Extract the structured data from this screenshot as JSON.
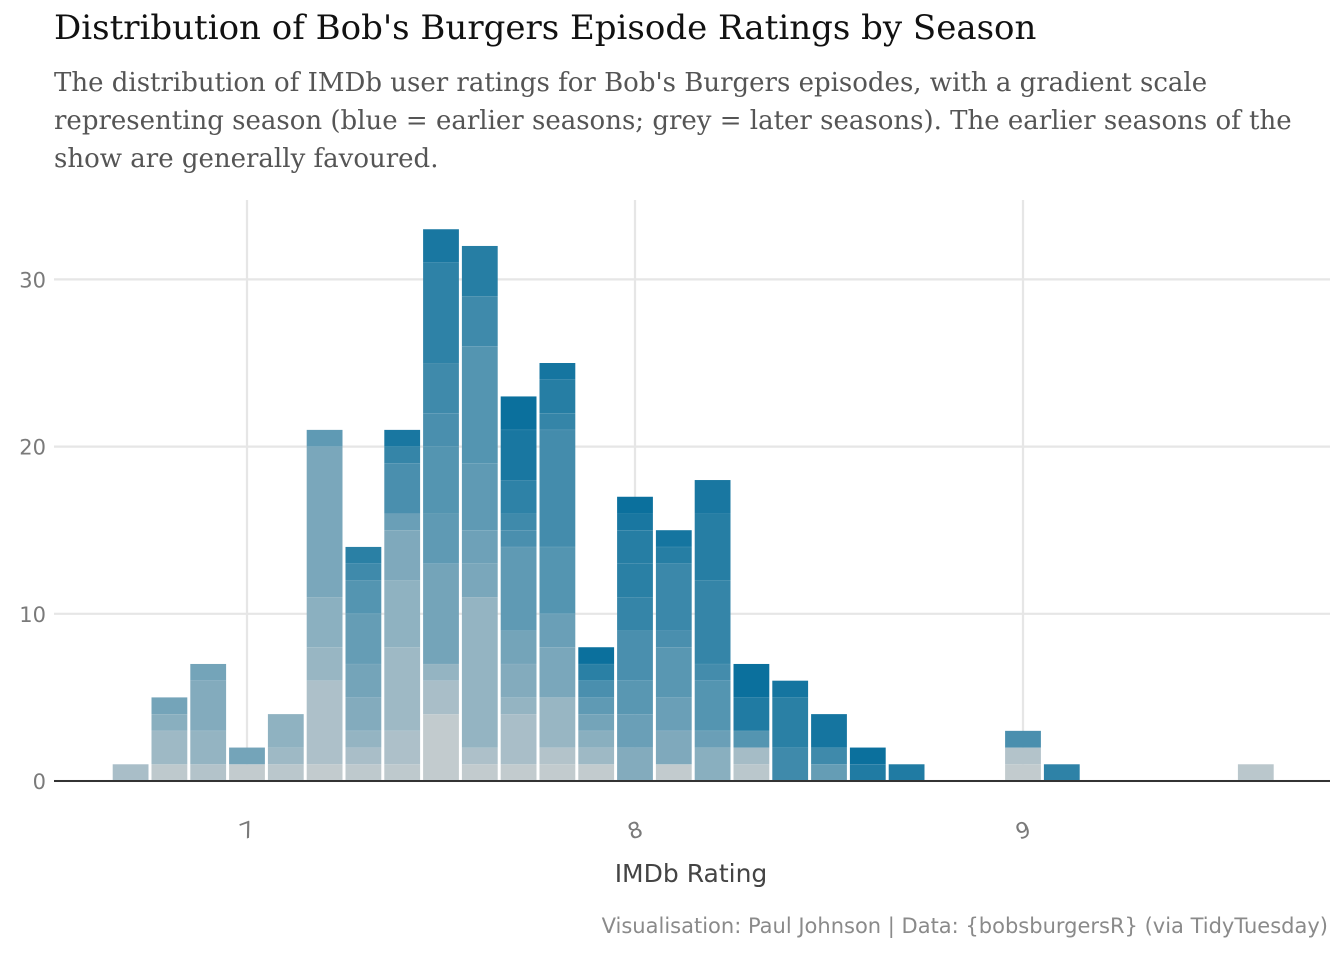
{
  "title": "Distribution of Bob's Burgers Episode Ratings by Season",
  "subtitle": "The distribution of IMDb user ratings for Bob's Burgers episodes, with a gradient scale representing season (blue = earlier seasons; grey = later seasons). The earlier seasons of the show are generally favoured.",
  "caption": "Visualisation: Paul Johnson | Data: {bobsburgersR} (via TidyTuesday)",
  "colors": {
    "earliest_season": "#006b9a",
    "latest_season": "#d3d3d3",
    "grid": "#e6e6e6",
    "baseline": "#333333"
  },
  "chart_data": {
    "type": "bar",
    "stacked": true,
    "xlabel": "IMDb Rating",
    "ylabel": "",
    "xlim": [
      6.5,
      9.8
    ],
    "ylim": [
      0,
      33
    ],
    "x_ticks": [
      7,
      8,
      9
    ],
    "y_ticks": [
      0,
      10,
      20,
      30
    ],
    "grid": true,
    "bin_width": 0.1,
    "bins": [
      {
        "x": 6.7,
        "total": 1,
        "segments": [
          {
            "count": 1,
            "shade": 0.8
          }
        ]
      },
      {
        "x": 6.8,
        "total": 5,
        "segments": [
          {
            "count": 1,
            "shade": 0.9
          },
          {
            "count": 2,
            "shade": 0.75
          },
          {
            "count": 1,
            "shade": 0.65
          },
          {
            "count": 1,
            "shade": 0.55
          }
        ]
      },
      {
        "x": 6.9,
        "total": 7,
        "segments": [
          {
            "count": 1,
            "shade": 0.85
          },
          {
            "count": 2,
            "shade": 0.7
          },
          {
            "count": 3,
            "shade": 0.62
          },
          {
            "count": 1,
            "shade": 0.55
          }
        ]
      },
      {
        "x": 7.0,
        "total": 2,
        "segments": [
          {
            "count": 1,
            "shade": 0.92
          },
          {
            "count": 1,
            "shade": 0.55
          }
        ]
      },
      {
        "x": 7.1,
        "total": 4,
        "segments": [
          {
            "count": 1,
            "shade": 0.88
          },
          {
            "count": 1,
            "shade": 0.75
          },
          {
            "count": 2,
            "shade": 0.68
          }
        ]
      },
      {
        "x": 7.2,
        "total": 21,
        "segments": [
          {
            "count": 1,
            "shade": 0.92
          },
          {
            "count": 5,
            "shade": 0.82
          },
          {
            "count": 2,
            "shade": 0.72
          },
          {
            "count": 3,
            "shade": 0.66
          },
          {
            "count": 9,
            "shade": 0.58
          },
          {
            "count": 1,
            "shade": 0.45
          }
        ]
      },
      {
        "x": 7.3,
        "total": 14,
        "segments": [
          {
            "count": 1,
            "shade": 0.9
          },
          {
            "count": 1,
            "shade": 0.8
          },
          {
            "count": 1,
            "shade": 0.7
          },
          {
            "count": 2,
            "shade": 0.62
          },
          {
            "count": 2,
            "shade": 0.55
          },
          {
            "count": 3,
            "shade": 0.48
          },
          {
            "count": 2,
            "shade": 0.4
          },
          {
            "count": 1,
            "shade": 0.3
          },
          {
            "count": 1,
            "shade": 0.2
          }
        ]
      },
      {
        "x": 7.4,
        "total": 21,
        "segments": [
          {
            "count": 1,
            "shade": 0.9
          },
          {
            "count": 2,
            "shade": 0.82
          },
          {
            "count": 5,
            "shade": 0.75
          },
          {
            "count": 4,
            "shade": 0.68
          },
          {
            "count": 3,
            "shade": 0.6
          },
          {
            "count": 1,
            "shade": 0.5
          },
          {
            "count": 3,
            "shade": 0.35
          },
          {
            "count": 1,
            "shade": 0.25
          },
          {
            "count": 1,
            "shade": 0.12
          }
        ]
      },
      {
        "x": 7.5,
        "total": 33,
        "segments": [
          {
            "count": 4,
            "shade": 0.92
          },
          {
            "count": 2,
            "shade": 0.8
          },
          {
            "count": 1,
            "shade": 0.7
          },
          {
            "count": 6,
            "shade": 0.55
          },
          {
            "count": 3,
            "shade": 0.45
          },
          {
            "count": 4,
            "shade": 0.4
          },
          {
            "count": 2,
            "shade": 0.35
          },
          {
            "count": 3,
            "shade": 0.3
          },
          {
            "count": 6,
            "shade": 0.22
          },
          {
            "count": 2,
            "shade": 0.12
          }
        ]
      },
      {
        "x": 7.6,
        "total": 32,
        "segments": [
          {
            "count": 1,
            "shade": 0.92
          },
          {
            "count": 1,
            "shade": 0.82
          },
          {
            "count": 9,
            "shade": 0.7
          },
          {
            "count": 2,
            "shade": 0.58
          },
          {
            "count": 2,
            "shade": 0.52
          },
          {
            "count": 4,
            "shade": 0.45
          },
          {
            "count": 7,
            "shade": 0.4
          },
          {
            "count": 3,
            "shade": 0.3
          },
          {
            "count": 3,
            "shade": 0.18
          }
        ]
      },
      {
        "x": 7.7,
        "total": 23,
        "segments": [
          {
            "count": 1,
            "shade": 0.92
          },
          {
            "count": 3,
            "shade": 0.8
          },
          {
            "count": 1,
            "shade": 0.7
          },
          {
            "count": 2,
            "shade": 0.62
          },
          {
            "count": 2,
            "shade": 0.55
          },
          {
            "count": 5,
            "shade": 0.45
          },
          {
            "count": 1,
            "shade": 0.35
          },
          {
            "count": 1,
            "shade": 0.3
          },
          {
            "count": 2,
            "shade": 0.22
          },
          {
            "count": 3,
            "shade": 0.12
          },
          {
            "count": 2,
            "shade": 0.05
          }
        ]
      },
      {
        "x": 7.8,
        "total": 25,
        "segments": [
          {
            "count": 1,
            "shade": 0.92
          },
          {
            "count": 1,
            "shade": 0.85
          },
          {
            "count": 3,
            "shade": 0.72
          },
          {
            "count": 3,
            "shade": 0.58
          },
          {
            "count": 2,
            "shade": 0.5
          },
          {
            "count": 4,
            "shade": 0.4
          },
          {
            "count": 7,
            "shade": 0.32
          },
          {
            "count": 1,
            "shade": 0.25
          },
          {
            "count": 2,
            "shade": 0.18
          },
          {
            "count": 1,
            "shade": 0.1
          }
        ]
      },
      {
        "x": 7.9,
        "total": 8,
        "segments": [
          {
            "count": 1,
            "shade": 0.92
          },
          {
            "count": 1,
            "shade": 0.75
          },
          {
            "count": 1,
            "shade": 0.65
          },
          {
            "count": 1,
            "shade": 0.55
          },
          {
            "count": 1,
            "shade": 0.45
          },
          {
            "count": 1,
            "shade": 0.35
          },
          {
            "count": 1,
            "shade": 0.2
          },
          {
            "count": 1,
            "shade": 0.05
          }
        ]
      },
      {
        "x": 8.0,
        "total": 17,
        "segments": [
          {
            "count": 2,
            "shade": 0.62
          },
          {
            "count": 2,
            "shade": 0.5
          },
          {
            "count": 2,
            "shade": 0.42
          },
          {
            "count": 3,
            "shade": 0.35
          },
          {
            "count": 2,
            "shade": 0.25
          },
          {
            "count": 2,
            "shade": 0.2
          },
          {
            "count": 2,
            "shade": 0.18
          },
          {
            "count": 1,
            "shade": 0.12
          },
          {
            "count": 1,
            "shade": 0.05
          }
        ]
      },
      {
        "x": 8.1,
        "total": 15,
        "segments": [
          {
            "count": 1,
            "shade": 0.92
          },
          {
            "count": 2,
            "shade": 0.6
          },
          {
            "count": 2,
            "shade": 0.5
          },
          {
            "count": 3,
            "shade": 0.42
          },
          {
            "count": 1,
            "shade": 0.35
          },
          {
            "count": 4,
            "shade": 0.28
          },
          {
            "count": 1,
            "shade": 0.18
          },
          {
            "count": 1,
            "shade": 0.1
          }
        ]
      },
      {
        "x": 8.2,
        "total": 18,
        "segments": [
          {
            "count": 2,
            "shade": 0.65
          },
          {
            "count": 1,
            "shade": 0.5
          },
          {
            "count": 3,
            "shade": 0.4
          },
          {
            "count": 1,
            "shade": 0.32
          },
          {
            "count": 5,
            "shade": 0.25
          },
          {
            "count": 4,
            "shade": 0.18
          },
          {
            "count": 2,
            "shade": 0.12
          }
        ]
      },
      {
        "x": 8.3,
        "total": 7,
        "segments": [
          {
            "count": 1,
            "shade": 0.88
          },
          {
            "count": 1,
            "shade": 0.78
          },
          {
            "count": 1,
            "shade": 0.4
          },
          {
            "count": 2,
            "shade": 0.15
          },
          {
            "count": 2,
            "shade": 0.05
          }
        ]
      },
      {
        "x": 8.4,
        "total": 6,
        "segments": [
          {
            "count": 2,
            "shade": 0.3
          },
          {
            "count": 3,
            "shade": 0.2
          },
          {
            "count": 1,
            "shade": 0.1
          }
        ]
      },
      {
        "x": 8.5,
        "total": 4,
        "segments": [
          {
            "count": 1,
            "shade": 0.48
          },
          {
            "count": 1,
            "shade": 0.3
          },
          {
            "count": 2,
            "shade": 0.1
          }
        ]
      },
      {
        "x": 8.6,
        "total": 2,
        "segments": [
          {
            "count": 1,
            "shade": 0.15
          },
          {
            "count": 1,
            "shade": 0.05
          }
        ]
      },
      {
        "x": 8.7,
        "total": 1,
        "segments": [
          {
            "count": 1,
            "shade": 0.15
          }
        ]
      },
      {
        "x": 9.0,
        "total": 3,
        "segments": [
          {
            "count": 1,
            "shade": 0.92
          },
          {
            "count": 1,
            "shade": 0.85
          },
          {
            "count": 1,
            "shade": 0.35
          }
        ]
      },
      {
        "x": 9.1,
        "total": 1,
        "segments": [
          {
            "count": 1,
            "shade": 0.22
          }
        ]
      },
      {
        "x": 9.6,
        "total": 1,
        "segments": [
          {
            "count": 1,
            "shade": 0.88
          }
        ]
      }
    ]
  }
}
